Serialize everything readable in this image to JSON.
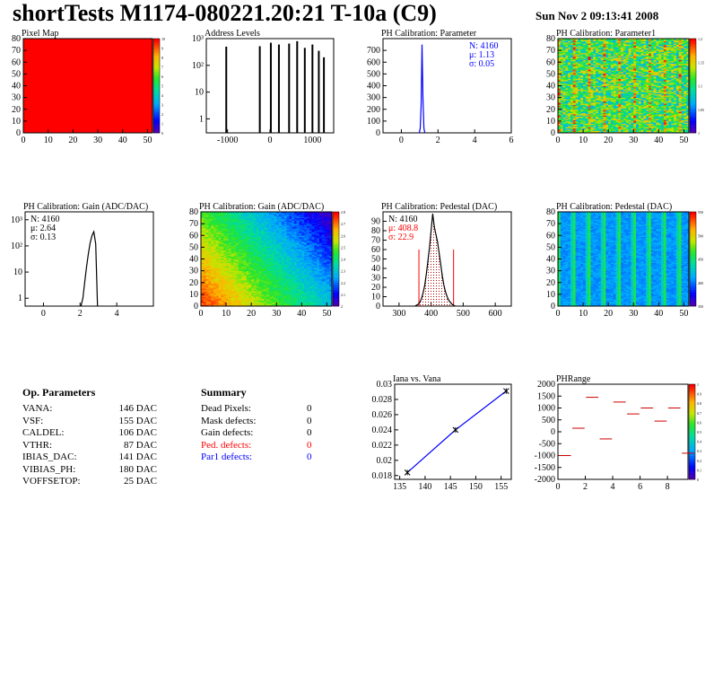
{
  "title": "shortTests M1174-080221.20:21 T-10a (C9)",
  "date": "Sun Nov  2 09:13:41 2008",
  "colors": {
    "red": "#ff0000",
    "blue": "#0000ff"
  },
  "chart_data": [
    {
      "id": "pixel-map",
      "type": "heatmap",
      "title": "Pixel Map",
      "xlim": [
        0,
        52
      ],
      "ylim": [
        0,
        80
      ],
      "x_ticks": [
        "0",
        "10",
        "20",
        "30",
        "40",
        "50"
      ],
      "y_ticks": [
        "0",
        "10",
        "20",
        "30",
        "40",
        "50",
        "60",
        "70",
        "80"
      ],
      "z_ticks": [
        "0",
        "1",
        "2",
        "3",
        "4",
        "5",
        "6",
        "7",
        "8",
        "9",
        "10"
      ],
      "zlim": [
        0,
        10
      ],
      "fill_value": 10
    },
    {
      "id": "address-levels",
      "type": "bar",
      "title": "Address Levels",
      "xlim": [
        -1500,
        1500
      ],
      "ylog": true,
      "ylim": [
        0.3,
        1000
      ],
      "x_ticks": [
        "-1000",
        "0",
        "1000"
      ],
      "y_ticks_log": [
        "1",
        "10",
        "10²",
        "10³"
      ],
      "peaks": [
        {
          "x": -1030,
          "y": 500
        },
        {
          "x": -240,
          "y": 520
        },
        {
          "x": 20,
          "y": 700
        },
        {
          "x": 210,
          "y": 600
        },
        {
          "x": 450,
          "y": 650
        },
        {
          "x": 640,
          "y": 800
        },
        {
          "x": 820,
          "y": 450
        },
        {
          "x": 1000,
          "y": 600
        },
        {
          "x": 1150,
          "y": 350
        },
        {
          "x": 1270,
          "y": 200
        }
      ]
    },
    {
      "id": "ph-cal-parameter",
      "type": "line",
      "title": "PH Calibration: Parameter",
      "xlim": [
        -1,
        6
      ],
      "ylim": [
        0,
        800
      ],
      "x_ticks": [
        "0",
        "2",
        "4",
        "6"
      ],
      "y_ticks": [
        "0",
        "100",
        "200",
        "300",
        "400",
        "500",
        "600",
        "700"
      ],
      "stats": [
        "N: 4160",
        "μ: 1.13",
        "σ: 0.05"
      ],
      "hist": [
        [
          0.98,
          0
        ],
        [
          1.03,
          40
        ],
        [
          1.08,
          230
        ],
        [
          1.13,
          750
        ],
        [
          1.18,
          300
        ],
        [
          1.23,
          40
        ],
        [
          1.28,
          0
        ]
      ]
    },
    {
      "id": "ph-cal-parameter1",
      "type": "heatmap",
      "title": "PH Calibration: Parameter1",
      "xlim": [
        0,
        52
      ],
      "ylim": [
        0,
        80
      ],
      "x_ticks": [
        "0",
        "10",
        "20",
        "30",
        "40",
        "50"
      ],
      "y_ticks": [
        "0",
        "10",
        "20",
        "30",
        "40",
        "50",
        "60",
        "70",
        "80"
      ],
      "z_ticks": [
        "1",
        "1.05",
        "1.1",
        "1.15",
        "1.2"
      ]
    },
    {
      "id": "ph-cal-gain",
      "type": "line",
      "title": "PH Calibration: Gain (ADC/DAC)",
      "xlim": [
        -1,
        6
      ],
      "ylog": true,
      "ylim": [
        0.5,
        2000
      ],
      "x_ticks": [
        "0",
        "2",
        "4"
      ],
      "y_ticks_log": [
        "1",
        "10",
        "10²",
        "10³"
      ],
      "stats": [
        "N: 4160",
        "μ: 2.64",
        "σ: 0.13"
      ],
      "hist": [
        [
          2.05,
          0
        ],
        [
          2.15,
          1
        ],
        [
          2.25,
          4
        ],
        [
          2.35,
          15
        ],
        [
          2.45,
          50
        ],
        [
          2.55,
          130
        ],
        [
          2.65,
          250
        ],
        [
          2.75,
          350
        ],
        [
          2.85,
          120
        ],
        [
          2.95,
          0
        ]
      ]
    },
    {
      "id": "ph-cal-gain-map",
      "type": "heatmap",
      "title": "PH Calibration: Gain (ADC/DAC)",
      "xlim": [
        0,
        52
      ],
      "ylim": [
        0,
        80
      ],
      "x_ticks": [
        "0",
        "10",
        "20",
        "30",
        "40",
        "50"
      ],
      "y_ticks": [
        "0",
        "10",
        "20",
        "30",
        "40",
        "50",
        "60",
        "70",
        "80"
      ],
      "z_ticks": [
        "2",
        "2.1",
        "2.2",
        "2.3",
        "2.4",
        "2.5",
        "2.6",
        "2.7",
        "2.8"
      ]
    },
    {
      "id": "ph-cal-pedestal",
      "type": "line",
      "title": "PH Calibration: Pedestal (DAC)",
      "xlim": [
        250,
        650
      ],
      "ylim": [
        0,
        100
      ],
      "x_ticks": [
        "300",
        "400",
        "500",
        "600"
      ],
      "y_ticks": [
        "0",
        "10",
        "20",
        "30",
        "40",
        "50",
        "60",
        "70",
        "80",
        "90"
      ],
      "stats": [
        "N: 4160",
        "μ: 408.8",
        "σ: 22.9"
      ],
      "cut_lines": [
        362,
        470
      ],
      "hist": [
        [
          350,
          0
        ],
        [
          355,
          1
        ],
        [
          360,
          2
        ],
        [
          365,
          4
        ],
        [
          370,
          8
        ],
        [
          375,
          14
        ],
        [
          380,
          22
        ],
        [
          385,
          34
        ],
        [
          390,
          48
        ],
        [
          395,
          62
        ],
        [
          400,
          80
        ],
        [
          405,
          98
        ],
        [
          410,
          84
        ],
        [
          415,
          76
        ],
        [
          420,
          68
        ],
        [
          425,
          56
        ],
        [
          430,
          44
        ],
        [
          435,
          32
        ],
        [
          440,
          22
        ],
        [
          445,
          15
        ],
        [
          450,
          10
        ],
        [
          455,
          6
        ],
        [
          460,
          4
        ],
        [
          465,
          2
        ],
        [
          470,
          1
        ],
        [
          475,
          0
        ]
      ]
    },
    {
      "id": "ph-cal-pedestal-map",
      "type": "heatmap",
      "title": "PH Calibration: Pedestal (DAC)",
      "xlim": [
        0,
        52
      ],
      "ylim": [
        0,
        80
      ],
      "x_ticks": [
        "0",
        "10",
        "20",
        "30",
        "40",
        "50"
      ],
      "y_ticks": [
        "0",
        "10",
        "20",
        "30",
        "40",
        "50",
        "60",
        "70",
        "80"
      ],
      "z_ticks": [
        "350",
        "400",
        "450",
        "500",
        "550"
      ]
    },
    {
      "id": "iana-vs-vana",
      "type": "line",
      "title": "Iana vs. Vana",
      "xlim": [
        134,
        157
      ],
      "ylim": [
        0.0175,
        0.03
      ],
      "x_ticks": [
        "135",
        "140",
        "145",
        "150",
        "155"
      ],
      "y_ticks": [
        "0.018",
        "0.02",
        "0.022",
        "0.024",
        "0.026",
        "0.028",
        "0.03"
      ],
      "points": [
        [
          136.5,
          0.0184
        ],
        [
          146,
          0.024
        ],
        [
          156,
          0.0291
        ]
      ]
    },
    {
      "id": "phrange",
      "type": "heatmap",
      "title": "PHRange",
      "xlim": [
        0,
        9.5
      ],
      "ylim": [
        -2000,
        2000
      ],
      "x_ticks": [
        "0",
        "2",
        "4",
        "6",
        "8"
      ],
      "y_ticks": [
        "-2000",
        "-1500",
        "-1000",
        "-500",
        "0",
        "500",
        "1000",
        "1500",
        "2000"
      ],
      "z_ticks": [
        "0",
        "0.1",
        "0.2",
        "0.3",
        "0.4",
        "0.5",
        "0.6",
        "0.7",
        "0.8",
        "0.9",
        "1"
      ],
      "segments": [
        [
          0,
          -1000
        ],
        [
          1,
          150
        ],
        [
          2,
          1450
        ],
        [
          3,
          -300
        ],
        [
          4,
          1250
        ],
        [
          5,
          750
        ],
        [
          6,
          1000
        ],
        [
          7,
          450
        ],
        [
          8,
          1000
        ],
        [
          9,
          -900
        ]
      ]
    }
  ],
  "op_params": {
    "header": "Op. Parameters",
    "rows": [
      {
        "name": "VANA:",
        "value": "146 DAC"
      },
      {
        "name": "VSF:",
        "value": "155 DAC"
      },
      {
        "name": "CALDEL:",
        "value": "106 DAC"
      },
      {
        "name": "VTHR:",
        "value": "87 DAC"
      },
      {
        "name": "IBIAS_DAC:",
        "value": "141 DAC"
      },
      {
        "name": "VIBIAS_PH:",
        "value": "180 DAC"
      },
      {
        "name": "VOFFSETOP:",
        "value": "25 DAC"
      }
    ]
  },
  "summary": {
    "header": "Summary",
    "rows": [
      {
        "name": "Dead Pixels:",
        "value": "0",
        "color": "#000000"
      },
      {
        "name": "Mask defects:",
        "value": "0",
        "color": "#000000"
      },
      {
        "name": "Gain defects:",
        "value": "0",
        "color": "#000000"
      },
      {
        "name": "Ped. defects:",
        "value": "0",
        "color": "#ff0000"
      },
      {
        "name": "Par1 defects:",
        "value": "0",
        "color": "#0000ff"
      }
    ]
  }
}
